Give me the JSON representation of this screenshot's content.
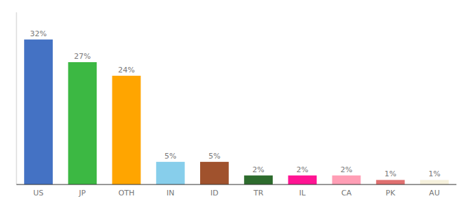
{
  "chart_data": {
    "type": "bar",
    "categories": [
      "US",
      "JP",
      "OTH",
      "IN",
      "ID",
      "TR",
      "IL",
      "CA",
      "PK",
      "AU"
    ],
    "values": [
      32,
      27,
      24,
      5,
      5,
      2,
      2,
      2,
      1,
      1
    ],
    "value_labels": [
      "32%",
      "27%",
      "24%",
      "5%",
      "5%",
      "2%",
      "2%",
      "2%",
      "1%",
      "1%"
    ],
    "colors": [
      "#4472c4",
      "#3cb843",
      "#ffa500",
      "#87ceeb",
      "#a0522d",
      "#2d6b2d",
      "#ff1493",
      "#ff9eb5",
      "#e07070",
      "#f5f0dc"
    ],
    "ylim": [
      0,
      38
    ],
    "data_labels": true,
    "grid": false,
    "tick_labels": "x"
  }
}
